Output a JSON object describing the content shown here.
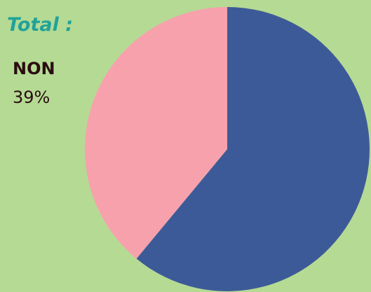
{
  "chart_data": {
    "type": "pie",
    "title": "Total :",
    "categories": [
      null,
      "NON"
    ],
    "values": [
      61,
      39
    ],
    "value_labels": [
      null,
      "39%"
    ],
    "colors": [
      "#3d5a98",
      "#f7a1ad"
    ]
  }
}
